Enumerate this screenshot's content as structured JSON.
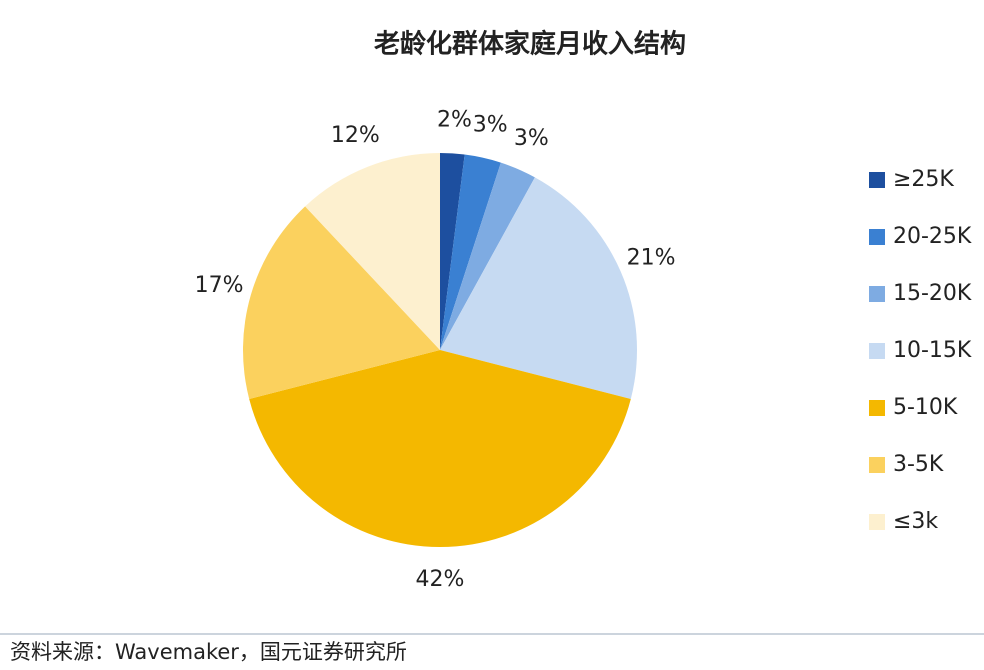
{
  "chart_data": {
    "type": "pie",
    "title": "老龄化群体家庭月收入结构",
    "categories": [
      "≥25K",
      "20-25K",
      "15-20K",
      "10-15K",
      "5-10K",
      "3-5K",
      "≤3k"
    ],
    "values": [
      2,
      3,
      3,
      21,
      42,
      17,
      12
    ],
    "value_labels": [
      "2%",
      "3%",
      "3%",
      "21%",
      "42%",
      "17%",
      "12%"
    ],
    "colors": [
      "#1d4f9f",
      "#3a80d2",
      "#7eabe2",
      "#c6daf2",
      "#f4b800",
      "#fbd15e",
      "#fdf0cf"
    ],
    "legend": "right",
    "source": "资料来源：Wavemaker，国元证券研究所"
  }
}
